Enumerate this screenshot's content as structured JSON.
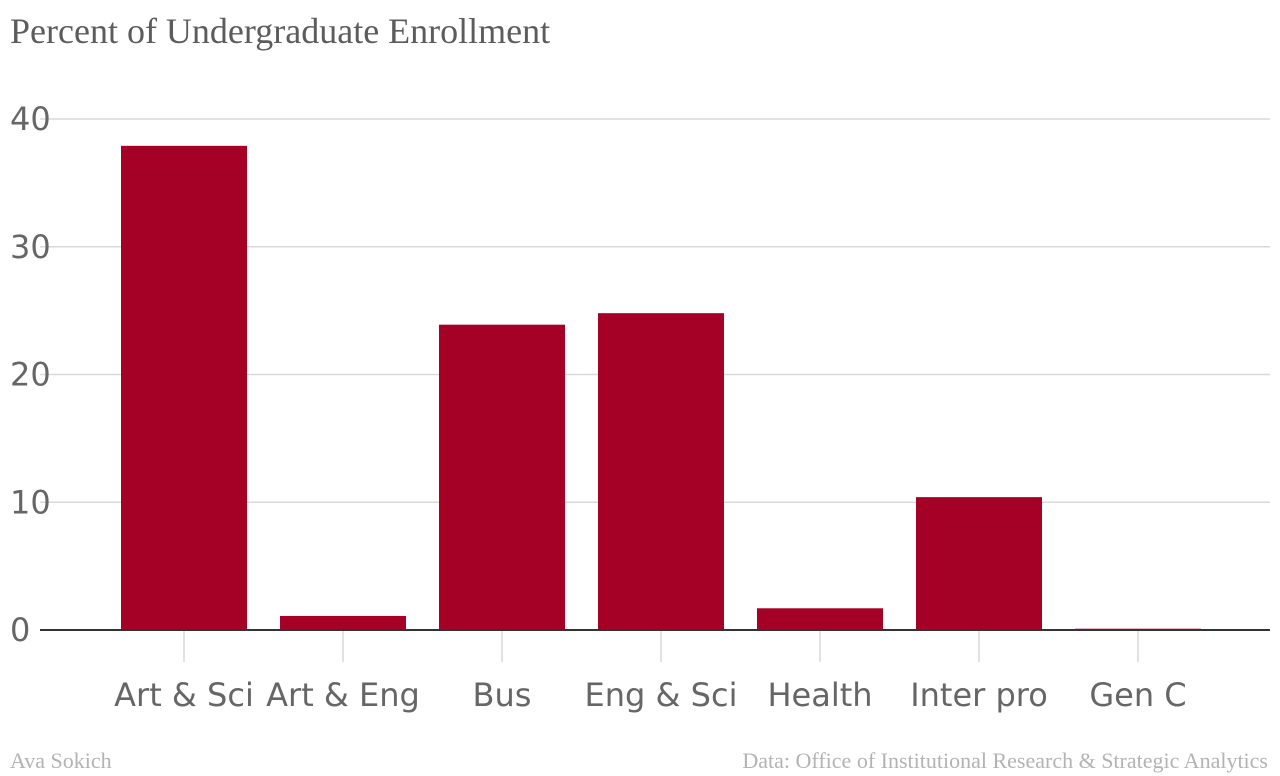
{
  "chart_data": {
    "type": "bar",
    "title": "Percent of Undergraduate Enrollment",
    "categories": [
      "Art & Sci",
      "Art & Eng",
      "Bus",
      "Eng & Sci",
      "Health",
      "Inter pro",
      "Gen C"
    ],
    "values": [
      37.9,
      1.1,
      23.9,
      24.8,
      1.7,
      10.4,
      0.1
    ],
    "ylim": [
      0,
      40
    ],
    "yticks": [
      0,
      10,
      20,
      30,
      40
    ],
    "xlabel": "",
    "ylabel": "",
    "grid": true,
    "bar_color": "#a50026",
    "grid_color": "#d9d9d9",
    "axis_color": "#333333"
  },
  "footer": {
    "author": "Ava Sokich",
    "source": "Data: Office of Institutional Research & Strategic Analytics"
  }
}
